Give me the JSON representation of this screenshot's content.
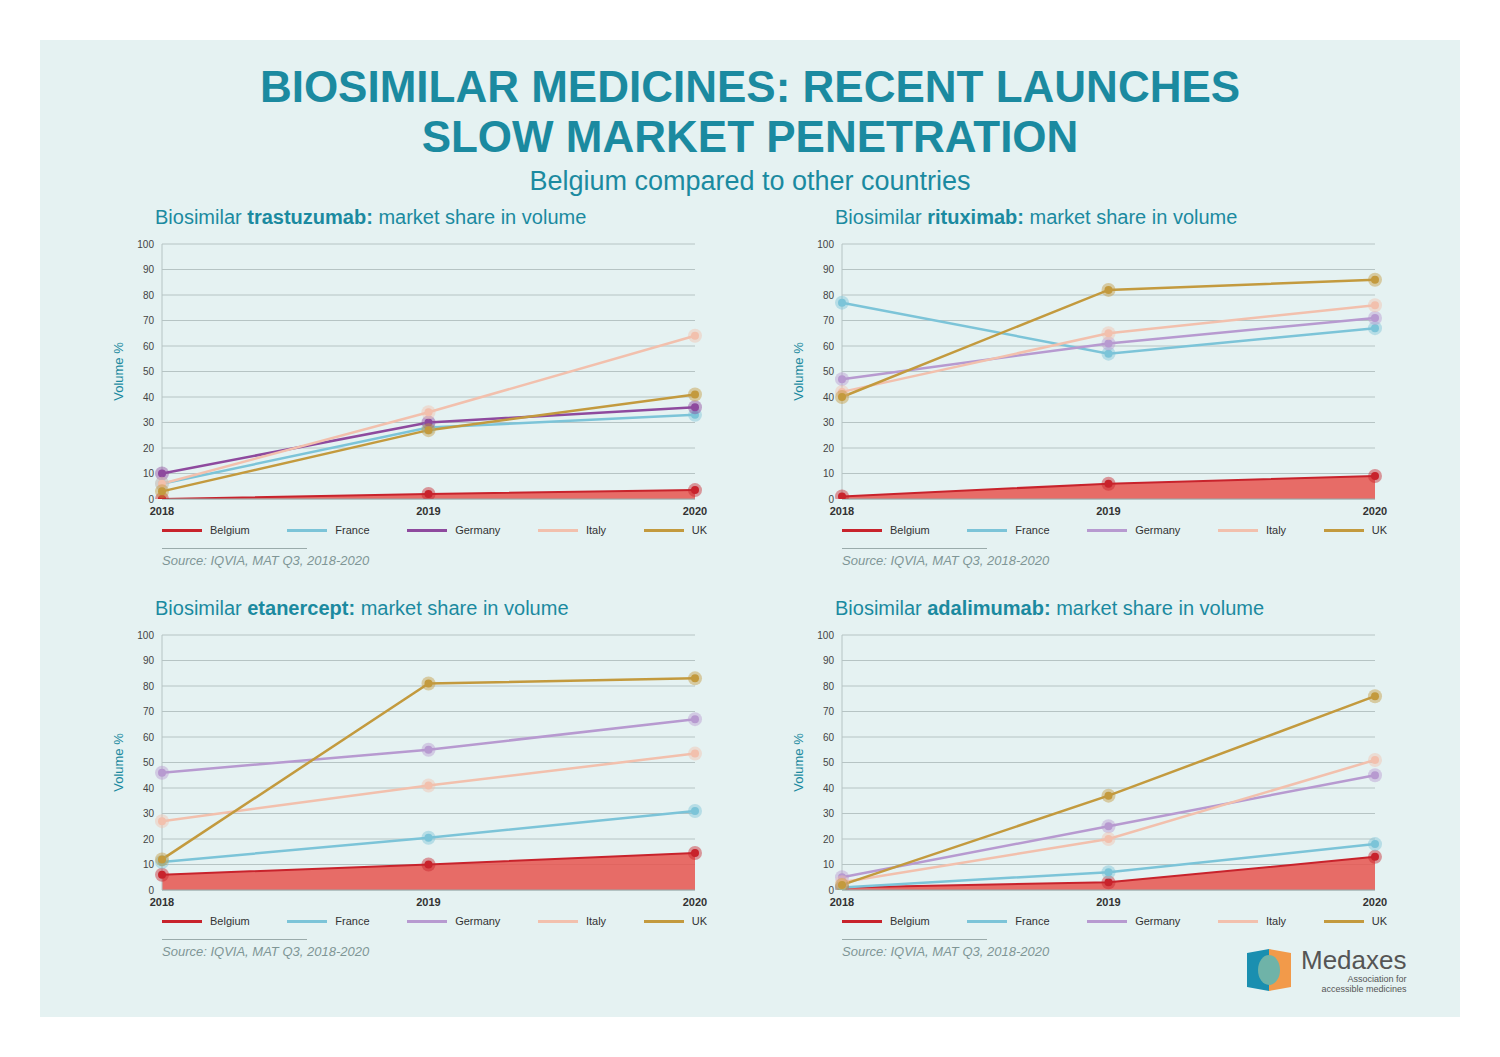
{
  "title": [
    "BIOSIMILAR MEDICINES: RECENT LAUNCHES",
    "SLOW MARKET PENETRATION"
  ],
  "subtitle": "Belgium compared to other countries",
  "logo": {
    "name": "Medaxes",
    "tagline": [
      "Association for",
      "accessible medicines"
    ]
  },
  "chart_data": [
    {
      "type": "line",
      "title": "Biosimilar trastuzumab: market share in volume",
      "y_label": "Volume %",
      "source": "Source: IQVIA, MAT Q3, 2018-2020",
      "categories": [
        "2018",
        "2019",
        "2020"
      ],
      "ylim": [
        0,
        100
      ],
      "yticks": [
        0,
        10,
        20,
        30,
        40,
        50,
        60,
        70,
        80,
        90,
        100
      ],
      "grid": true,
      "legend": "bottom",
      "marker": "circle",
      "series": [
        {
          "name": "Belgium",
          "color": "#c8232c",
          "type": "area",
          "values": [
            0,
            2,
            3.5
          ]
        },
        {
          "name": "France",
          "color": "#7cc4d8",
          "values": [
            6,
            28,
            33
          ]
        },
        {
          "name": "Germany",
          "color": "#8e4a9e",
          "values": [
            10,
            30,
            36
          ]
        },
        {
          "name": "Italy",
          "color": "#f2c0ad",
          "values": [
            6,
            34,
            64
          ]
        },
        {
          "name": "UK",
          "color": "#c39a3e",
          "values": [
            3,
            27,
            41
          ]
        }
      ]
    },
    {
      "type": "line",
      "title": "Biosimilar rituximab: market share in volume",
      "y_label": "Volume %",
      "source": "Source: IQVIA, MAT Q3, 2018-2020",
      "categories": [
        "2018",
        "2019",
        "2020"
      ],
      "ylim": [
        0,
        100
      ],
      "yticks": [
        0,
        10,
        20,
        30,
        40,
        50,
        60,
        70,
        80,
        90,
        100
      ],
      "grid": true,
      "legend": "bottom",
      "marker": "circle",
      "series": [
        {
          "name": "Belgium",
          "color": "#c8232c",
          "type": "area",
          "values": [
            1,
            6,
            9
          ]
        },
        {
          "name": "France",
          "color": "#7cc4d8",
          "values": [
            77,
            57,
            67
          ]
        },
        {
          "name": "Germany",
          "color": "#b79ad0",
          "values": [
            47,
            61,
            71
          ]
        },
        {
          "name": "Italy",
          "color": "#f2c0ad",
          "values": [
            42,
            65,
            76
          ]
        },
        {
          "name": "UK",
          "color": "#c39a3e",
          "values": [
            40,
            82,
            86
          ]
        }
      ]
    },
    {
      "type": "line",
      "title": "Biosimilar etanercept: market share in volume",
      "y_label": "Volume %",
      "source": "Source: IQVIA, MAT Q3, 2018-2020",
      "categories": [
        "2018",
        "2019",
        "2020"
      ],
      "ylim": [
        0,
        100
      ],
      "yticks": [
        0,
        10,
        20,
        30,
        40,
        50,
        60,
        70,
        80,
        90,
        100
      ],
      "grid": true,
      "legend": "bottom",
      "marker": "circle",
      "series": [
        {
          "name": "Belgium",
          "color": "#c8232c",
          "type": "area",
          "values": [
            6,
            10,
            14.5
          ]
        },
        {
          "name": "France",
          "color": "#7cc4d8",
          "values": [
            11,
            20.5,
            31
          ]
        },
        {
          "name": "Germany",
          "color": "#b79ad0",
          "values": [
            46,
            55,
            67
          ]
        },
        {
          "name": "Italy",
          "color": "#f2c0ad",
          "values": [
            27,
            41,
            53.5
          ]
        },
        {
          "name": "UK",
          "color": "#c39a3e",
          "values": [
            12,
            81,
            83
          ]
        }
      ]
    },
    {
      "type": "line",
      "title": "Biosimilar adalimumab: market share in volume",
      "y_label": "Volume %",
      "source": "Source: IQVIA, MAT Q3, 2018-2020",
      "categories": [
        "2018",
        "2019",
        "2020"
      ],
      "ylim": [
        0,
        100
      ],
      "yticks": [
        0,
        10,
        20,
        30,
        40,
        50,
        60,
        70,
        80,
        90,
        100
      ],
      "grid": true,
      "legend": "bottom",
      "marker": "circle",
      "series": [
        {
          "name": "Belgium",
          "color": "#c8232c",
          "type": "area",
          "values": [
            1,
            3,
            13
          ]
        },
        {
          "name": "France",
          "color": "#7cc4d8",
          "values": [
            1,
            7,
            18
          ]
        },
        {
          "name": "Germany",
          "color": "#b79ad0",
          "values": [
            5,
            25,
            45
          ]
        },
        {
          "name": "Italy",
          "color": "#f2c0ad",
          "values": [
            3,
            20,
            51
          ]
        },
        {
          "name": "UK",
          "color": "#c39a3e",
          "values": [
            2,
            37,
            76
          ]
        }
      ]
    }
  ]
}
